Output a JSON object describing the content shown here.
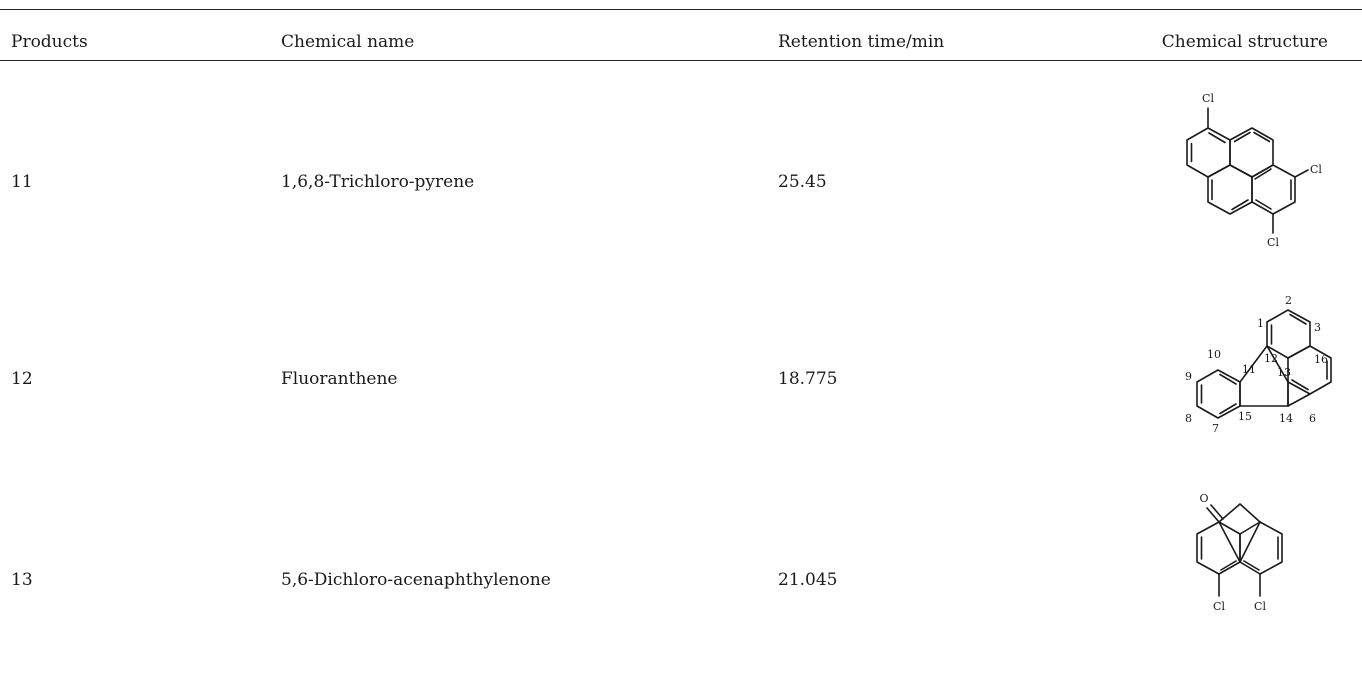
{
  "table": {
    "headers": {
      "products": "Products",
      "chemical_name": "Chemical name",
      "retention_time": "Retention time/min",
      "chemical_structure": "Chemical structure"
    },
    "rows": [
      {
        "product": "11",
        "chemical_name": "1,6,8-Trichloro-pyrene",
        "retention_time": "25.45",
        "structure_labels": {
          "cl_top": "Cl",
          "cl_right": "Cl",
          "cl_bottom": "Cl"
        }
      },
      {
        "product": "12",
        "chemical_name": "Fluoranthene",
        "retention_time": "18.775",
        "structure_labels": {
          "n1": "1",
          "n2": "2",
          "n3": "3",
          "n6": "6",
          "n7": "7",
          "n8": "8",
          "n9": "9",
          "n10": "10",
          "n11": "11",
          "n12": "12",
          "n13": "13",
          "n14": "14",
          "n15": "15",
          "n16": "16"
        }
      },
      {
        "product": "13",
        "chemical_name": "5,6-Dichloro-acenaphthylenone",
        "retention_time": "21.045",
        "structure_labels": {
          "oxygen": "O",
          "cl_left": "Cl",
          "cl_right": "Cl"
        }
      }
    ]
  }
}
